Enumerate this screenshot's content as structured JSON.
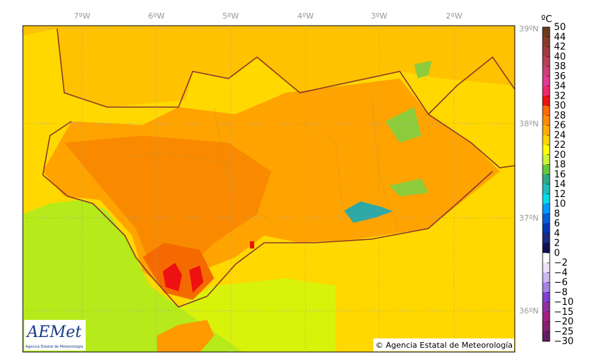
{
  "map": {
    "lon_labels": [
      "7ºW",
      "6ºW",
      "5ºW",
      "4ºW",
      "3ºW",
      "2ºW"
    ],
    "lat_labels": [
      "39ºN",
      "38ºN",
      "37ºN",
      "36ºN"
    ],
    "colorbar": {
      "unit": "ºC",
      "labels": [
        "50",
        "44",
        "42",
        "40",
        "38",
        "36",
        "34",
        "32",
        "30",
        "28",
        "26",
        "24",
        "22",
        "20",
        "18",
        "16",
        "14",
        "12",
        "10",
        "8",
        "6",
        "4",
        "2",
        "0",
        "−2",
        "−4",
        "−6",
        "−8",
        "−10",
        "−15",
        "−20",
        "−25",
        "−30"
      ],
      "colors": [
        "#6e3a1c",
        "#8a3a2a",
        "#a03a40",
        "#b83e5a",
        "#cc3f78",
        "#e03c96",
        "#ee2a6a",
        "#ee1111",
        "#ff6a00",
        "#ff8c00",
        "#ffae00",
        "#ffd400",
        "#ffff00",
        "#ccf533",
        "#66c83c",
        "#2fa88a",
        "#1fbcbc",
        "#00dcec",
        "#0099ff",
        "#0060d8",
        "#0038b0",
        "#1a2a80",
        "#101050",
        "#ffffff",
        "#ece4f6",
        "#cdb8ee",
        "#a582e2",
        "#8040d0",
        "#9030a0",
        "#a02080",
        "#842072",
        "#622060"
      ]
    },
    "logo": {
      "name": "AEMet",
      "subtitle": "Agencia Estatal de Meteorología"
    },
    "credit": "© Agencia Estatal de Meteorología"
  }
}
